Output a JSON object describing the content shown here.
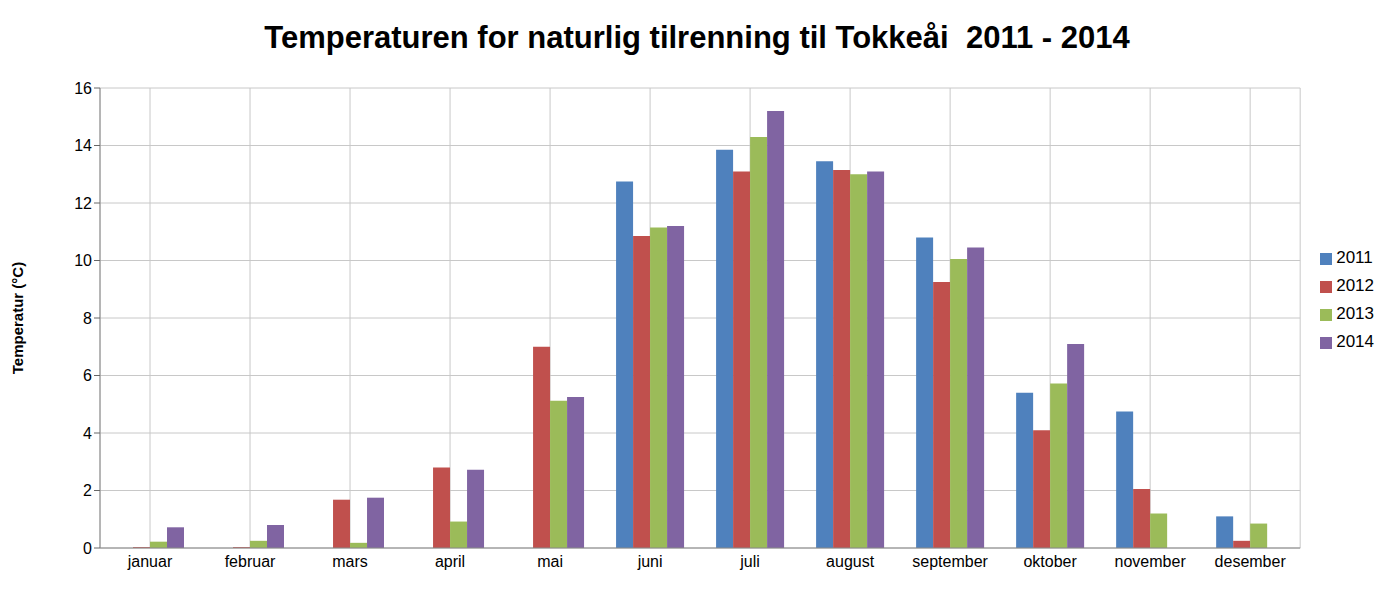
{
  "chart_data": {
    "type": "bar",
    "title": "Temperaturen for naturlig tilrenning til Tokkeåi  2011 - 2014",
    "y_label": "Temperatur (°C)",
    "categories": [
      "januar",
      "februar",
      "mars",
      "april",
      "mai",
      "juni",
      "juli",
      "august",
      "september",
      "oktober",
      "november",
      "desember"
    ],
    "series": [
      {
        "name": "2011",
        "color": "#4f81bd",
        "values": [
          null,
          null,
          null,
          null,
          null,
          12.75,
          13.85,
          13.45,
          10.8,
          5.4,
          4.75,
          1.1
        ]
      },
      {
        "name": "2012",
        "color": "#c0504d",
        "values": [
          0.03,
          0.03,
          1.68,
          2.8,
          7.0,
          10.85,
          13.1,
          13.15,
          9.25,
          4.1,
          2.05,
          0.25
        ]
      },
      {
        "name": "2013",
        "color": "#9bbb59",
        "values": [
          0.22,
          0.25,
          0.18,
          0.92,
          5.12,
          11.15,
          14.3,
          13.0,
          10.05,
          5.72,
          1.2,
          0.85
        ]
      },
      {
        "name": "2014",
        "color": "#8064a2",
        "values": [
          0.72,
          0.8,
          1.75,
          2.72,
          5.25,
          11.2,
          15.2,
          13.1,
          10.45,
          7.1,
          null,
          null
        ]
      }
    ],
    "ylim": [
      0,
      16
    ],
    "yticks": [
      0,
      2,
      4,
      6,
      8,
      10,
      12,
      14,
      16
    ],
    "grid": true,
    "legend": "right"
  }
}
